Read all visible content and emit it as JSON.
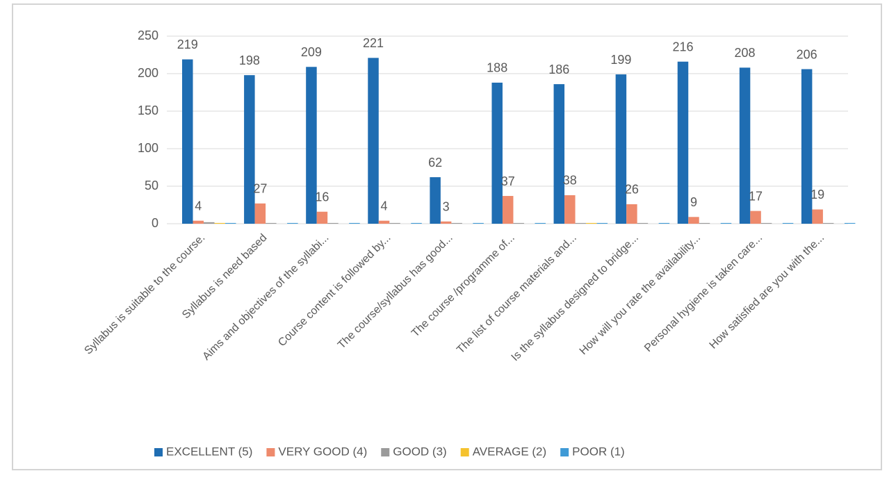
{
  "chart_data": {
    "type": "bar",
    "categories": [
      "Syllabus is suitable to the course.",
      "Syllabus is need based",
      "Aims and objectives of the syllabi...",
      "Course content is followed by...",
      "The course/syllabus has good...",
      "The course /programme of...",
      "The list of course materials and...",
      "Is the syllabus designed to bridge...",
      "How will you rate the availability...",
      "Personal hygiene is taken care...",
      "How satisfied are you with the..."
    ],
    "series": [
      {
        "name": "EXCELLENT (5)",
        "color": "#1f6db2",
        "show_labels": true,
        "values": [
          219,
          198,
          209,
          221,
          62,
          188,
          186,
          199,
          216,
          208,
          206
        ]
      },
      {
        "name": "VERY GOOD (4)",
        "color": "#ee8a6c",
        "show_labels": true,
        "values": [
          4,
          27,
          16,
          4,
          3,
          37,
          38,
          26,
          9,
          17,
          19
        ]
      },
      {
        "name": "GOOD (3)",
        "color": "#9a9a9a",
        "show_labels": false,
        "values": [
          2,
          1,
          1,
          1,
          1,
          1,
          1,
          1,
          1,
          1,
          1
        ]
      },
      {
        "name": "AVERAGE (2)",
        "color": "#f5c22e",
        "show_labels": false,
        "values": [
          1,
          0,
          0,
          0,
          0,
          0,
          1,
          0,
          0,
          0,
          0
        ]
      },
      {
        "name": "POOR (1)",
        "color": "#3f9ad6",
        "show_labels": false,
        "values": [
          1,
          1,
          1,
          1,
          1,
          1,
          1,
          1,
          1,
          1,
          1
        ]
      }
    ],
    "ylim": [
      0,
      250
    ],
    "yticks": [
      0,
      50,
      100,
      150,
      200,
      250
    ],
    "grid": true,
    "legend": "bottom"
  }
}
